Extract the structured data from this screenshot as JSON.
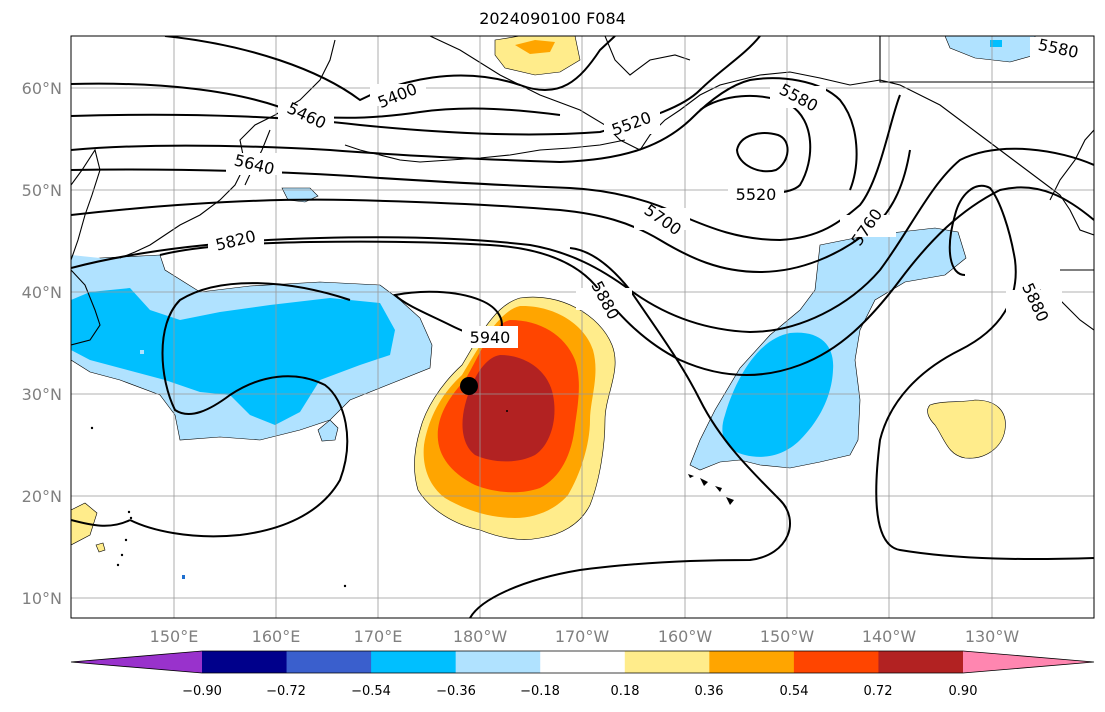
{
  "title": "2024090100 F084",
  "map": {
    "lat_ticks": [
      "60°N",
      "50°N",
      "40°N",
      "30°N",
      "20°N",
      "10°N"
    ],
    "lon_ticks": [
      "150°E",
      "160°E",
      "170°E",
      "180°W",
      "170°W",
      "160°W",
      "150°W",
      "140°W",
      "130°W"
    ],
    "height_contour_labels": [
      "5400",
      "5460",
      "5520",
      "5520",
      "5580",
      "5580",
      "5640",
      "5700",
      "5760",
      "5820",
      "5880",
      "5880",
      "5940"
    ],
    "marker": "storm-center-dot"
  },
  "colorbar": {
    "labels": [
      "−0.90",
      "−0.72",
      "−0.54",
      "−0.36",
      "−0.18",
      "0.18",
      "0.36",
      "0.54",
      "0.72",
      "0.90"
    ],
    "colors": [
      "#9932cc",
      "#00008b",
      "#3a5fcd",
      "#00bfff",
      "#b0e2ff",
      "#ffffff",
      "#ffec8b",
      "#ffa500",
      "#ff4500",
      "#b22222",
      "#ff86b0"
    ]
  }
}
